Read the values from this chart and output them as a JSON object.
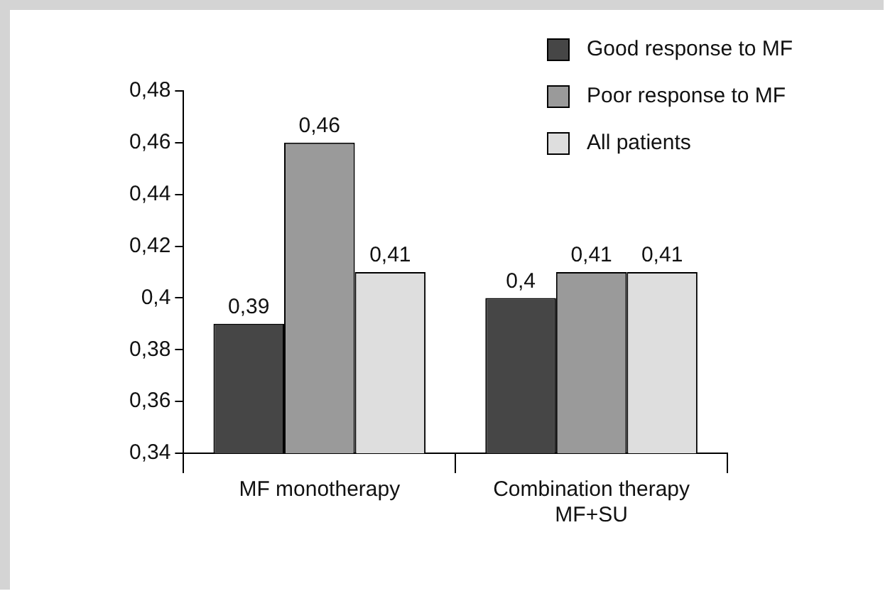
{
  "chart_data": {
    "type": "bar",
    "categories": [
      "MF monotherapy",
      "Combination therapy MF+SU"
    ],
    "series": [
      {
        "name": "Good response to MF",
        "color": "#464646",
        "values": [
          0.39,
          0.4
        ],
        "value_labels": [
          "0,39",
          "0,4"
        ]
      },
      {
        "name": "Poor response to MF",
        "color": "#9a9a9a",
        "values": [
          0.46,
          0.41
        ],
        "value_labels": [
          "0,46",
          "0,41"
        ]
      },
      {
        "name": "All patients",
        "color": "#dedede",
        "values": [
          0.41,
          0.41
        ],
        "value_labels": [
          "0,41",
          "0,41"
        ]
      }
    ],
    "ylim": [
      0.34,
      0.48
    ],
    "yticks": [
      {
        "value": 0.34,
        "label": "0,34"
      },
      {
        "value": 0.36,
        "label": "0,36"
      },
      {
        "value": 0.38,
        "label": "0,38"
      },
      {
        "value": 0.4,
        "label": "0,4"
      },
      {
        "value": 0.42,
        "label": "0,42"
      },
      {
        "value": 0.44,
        "label": "0,44"
      },
      {
        "value": 0.46,
        "label": "0,46"
      },
      {
        "value": 0.48,
        "label": "0,48"
      }
    ],
    "grid": false,
    "legend": "top right"
  }
}
